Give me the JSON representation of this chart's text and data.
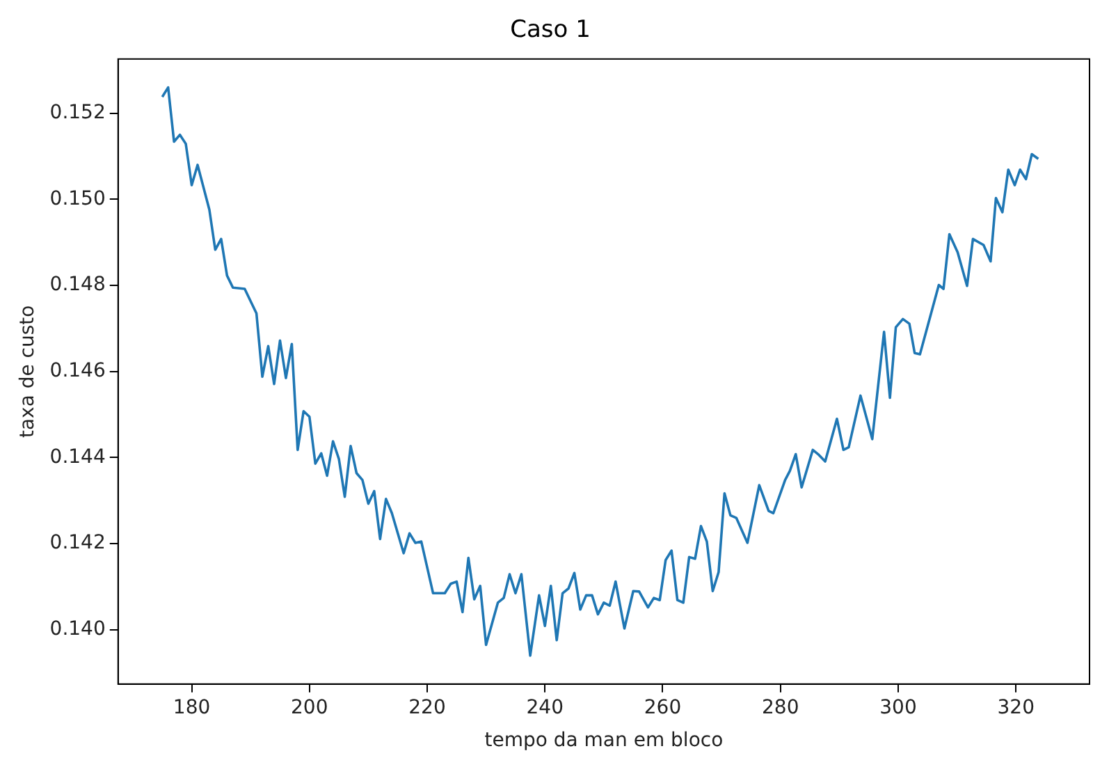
{
  "chart_data": {
    "type": "line",
    "title": "Caso 1",
    "xlabel": "tempo da man em bloco",
    "ylabel": "taxa de custo",
    "x": [
      175,
      176,
      177,
      178,
      179,
      180,
      181,
      183,
      184,
      185,
      186,
      187,
      189,
      191,
      192,
      193,
      194,
      195,
      196,
      197,
      198,
      199,
      200,
      201,
      202,
      203,
      204,
      205,
      206,
      207,
      208,
      209,
      210,
      211,
      212,
      213,
      214,
      216,
      217,
      218,
      219,
      221,
      223,
      224,
      225,
      226,
      227,
      228,
      229,
      230,
      232,
      233,
      234,
      235,
      236,
      237.5,
      239,
      240,
      241,
      242,
      243,
      244,
      245,
      246,
      247,
      248,
      249,
      250,
      251,
      252,
      253.5,
      255,
      256,
      257.5,
      258.5,
      259.5,
      260.5,
      261.5,
      262.5,
      263.5,
      264.5,
      265.5,
      266.5,
      267.5,
      268.5,
      269.5,
      270.5,
      271.5,
      272.5,
      274.4,
      276.4,
      278,
      278.8,
      280.8,
      281.6,
      282.6,
      283.6,
      285.5,
      286.4,
      287.6,
      289.6,
      290.7,
      291.6,
      293.6,
      295.6,
      297.6,
      298.6,
      299.6,
      300.8,
      301.9,
      302.8,
      303.7,
      306.9,
      307.7,
      308.7,
      310.1,
      311.7,
      312.7,
      314.5,
      315.7,
      316.6,
      317.7,
      318.7,
      319.8,
      320.7,
      321.7,
      322.7,
      323.8
    ],
    "series": [
      {
        "color": "#1f77b4",
        "values": [
          0.15238,
          0.1526,
          0.15134,
          0.1515,
          0.15129,
          0.15033,
          0.1508,
          0.14976,
          0.14883,
          0.14908,
          0.14823,
          0.14795,
          0.14792,
          0.14735,
          0.14588,
          0.14659,
          0.14571,
          0.14672,
          0.14585,
          0.14664,
          0.14418,
          0.14508,
          0.14495,
          0.14386,
          0.1441,
          0.14358,
          0.14438,
          0.14397,
          0.14309,
          0.14427,
          0.14364,
          0.14348,
          0.14293,
          0.14322,
          0.14211,
          0.14304,
          0.14271,
          0.14178,
          0.14224,
          0.14202,
          0.14205,
          0.14085,
          0.14085,
          0.14107,
          0.14112,
          0.14041,
          0.14167,
          0.14071,
          0.14102,
          0.13965,
          0.14063,
          0.14074,
          0.14129,
          0.14085,
          0.14129,
          0.1394,
          0.1408,
          0.14009,
          0.14102,
          0.13976,
          0.14085,
          0.14096,
          0.14132,
          0.14047,
          0.1408,
          0.1408,
          0.14036,
          0.14063,
          0.14056,
          0.14112,
          0.14003,
          0.1409,
          0.14089,
          0.14052,
          0.14074,
          0.14069,
          0.14162,
          0.14184,
          0.14069,
          0.14063,
          0.14169,
          0.14165,
          0.14241,
          0.14205,
          0.1409,
          0.14134,
          0.14317,
          0.14266,
          0.1426,
          0.14202,
          0.14336,
          0.14276,
          0.14271,
          0.14348,
          0.14369,
          0.14408,
          0.14331,
          0.14418,
          0.14408,
          0.14391,
          0.1449,
          0.14418,
          0.14424,
          0.14544,
          0.14443,
          0.14692,
          0.14539,
          0.14703,
          0.14722,
          0.14711,
          0.14643,
          0.1464,
          0.14801,
          0.14792,
          0.14919,
          0.14877,
          0.14799,
          0.14908,
          0.14894,
          0.14856,
          0.15003,
          0.1497,
          0.15069,
          0.15033,
          0.15069,
          0.15047,
          0.15105,
          0.15094
        ]
      }
    ],
    "xlim": [
      167.5,
      332.5
    ],
    "xticks": [
      180,
      200,
      220,
      240,
      260,
      280,
      300,
      320
    ],
    "ylim": [
      0.13874,
      0.15326
    ],
    "yticks": [
      {
        "value": 0.14,
        "label": "0.140"
      },
      {
        "value": 0.142,
        "label": "0.142"
      },
      {
        "value": 0.144,
        "label": "0.144"
      },
      {
        "value": 0.146,
        "label": "0.146"
      },
      {
        "value": 0.148,
        "label": "0.148"
      },
      {
        "value": 0.15,
        "label": "0.150"
      },
      {
        "value": 0.152,
        "label": "0.152"
      }
    ],
    "grid": false,
    "legend": false,
    "marker": "none",
    "line_style": "solid"
  }
}
